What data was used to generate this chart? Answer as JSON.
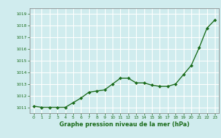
{
  "x": [
    0,
    1,
    2,
    3,
    4,
    5,
    6,
    7,
    8,
    9,
    10,
    11,
    12,
    13,
    14,
    15,
    16,
    17,
    18,
    19,
    20,
    21,
    22,
    23
  ],
  "y": [
    1011.1,
    1011.0,
    1011.0,
    1011.0,
    1011.0,
    1011.4,
    1011.8,
    1012.3,
    1012.4,
    1012.5,
    1013.0,
    1013.5,
    1013.5,
    1013.1,
    1013.1,
    1012.9,
    1012.8,
    1012.8,
    1013.0,
    1013.8,
    1014.6,
    1016.1,
    1017.8,
    1018.5
  ],
  "xlabel": "Graphe pression niveau de la mer (hPa)",
  "ylim": [
    1010.5,
    1019.5
  ],
  "xlim": [
    -0.5,
    23.5
  ],
  "yticks": [
    1011,
    1012,
    1013,
    1014,
    1015,
    1016,
    1017,
    1018,
    1019
  ],
  "xticks": [
    0,
    1,
    2,
    3,
    4,
    5,
    6,
    7,
    8,
    9,
    10,
    11,
    12,
    13,
    14,
    15,
    16,
    17,
    18,
    19,
    20,
    21,
    22,
    23
  ],
  "line_color": "#1a6b1a",
  "marker_color": "#1a6b1a",
  "bg_color": "#d0ecee",
  "grid_color": "#ffffff",
  "xlabel_color": "#1a6b1a",
  "tick_color": "#1a6b1a",
  "axis_line_color": "#888888"
}
